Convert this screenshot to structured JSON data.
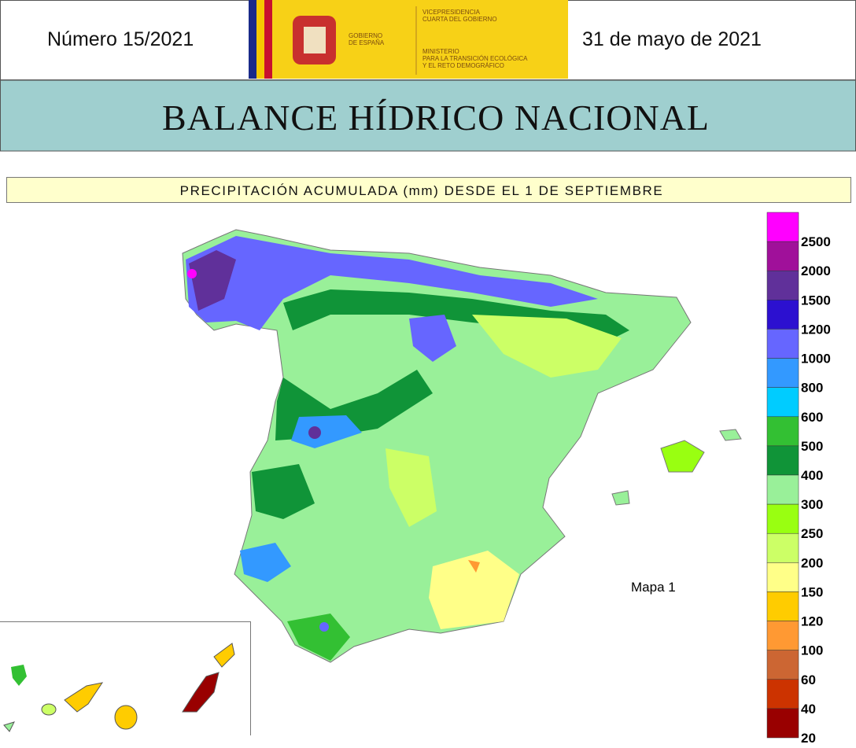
{
  "header": {
    "number": "Número 15/2021",
    "date": "31 de mayo de 2021",
    "logo": {
      "gobierno": [
        "GOBIERNO",
        "DE ESPAÑA"
      ],
      "vicepresidencia": [
        "VICEPRESIDENCIA",
        "CUARTA DEL GOBIERNO"
      ],
      "ministerio": [
        "MINISTERIO",
        "PARA LA TRANSICIÓN ECOLÓGICA",
        "Y EL RETO DEMOGRÁFICO"
      ]
    }
  },
  "title": "BALANCE HÍDRICO NACIONAL",
  "map": {
    "subtitle": "PRECIPITACIÓN ACUMULADA (mm) DESDE EL 1 DE SEPTIEMBRE",
    "label": "Mapa 1",
    "legend": [
      {
        "label": "2500",
        "color": "#ff00ff"
      },
      {
        "label": "2000",
        "color": "#a0109a"
      },
      {
        "label": "1500",
        "color": "#60309a"
      },
      {
        "label": "1200",
        "color": "#2c10d0"
      },
      {
        "label": "1000",
        "color": "#6666ff"
      },
      {
        "label": "800",
        "color": "#3399ff"
      },
      {
        "label": "600",
        "color": "#00ccff"
      },
      {
        "label": "500",
        "color": "#33c033"
      },
      {
        "label": "400",
        "color": "#109438"
      },
      {
        "label": "300",
        "color": "#99f099"
      },
      {
        "label": "250",
        "color": "#99ff11"
      },
      {
        "label": "200",
        "color": "#ccff66"
      },
      {
        "label": "150",
        "color": "#ffff88"
      },
      {
        "label": "120",
        "color": "#ffcc00"
      },
      {
        "label": "100",
        "color": "#ff9933"
      },
      {
        "label": "60",
        "color": "#cc6633"
      },
      {
        "label": "40",
        "color": "#cc3300"
      },
      {
        "label": "20",
        "color": "#990000"
      }
    ]
  }
}
